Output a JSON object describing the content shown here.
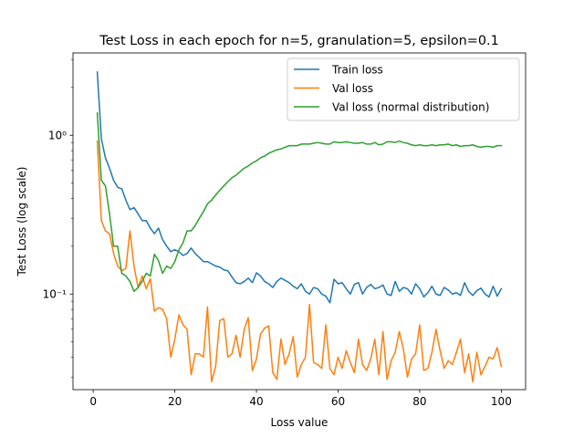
{
  "chart_data": {
    "type": "line",
    "title": "Test Loss in each epoch for n=5, granulation=5, epsilon=0.1",
    "xlabel": "Loss value",
    "ylabel": "Test Loss (log scale)",
    "xlim": [
      -4.95,
      105.95
    ],
    "ylim": [
      0.025,
      3.3
    ],
    "y_scale": "log",
    "x_ticks": [
      0,
      20,
      40,
      60,
      80,
      100
    ],
    "y_ticks": [
      {
        "value": 0.1,
        "label": "10⁻¹"
      },
      {
        "value": 1,
        "label": "10⁰"
      }
    ],
    "grid": false,
    "legend_position": "top-right",
    "x": [
      1,
      2,
      3,
      4,
      5,
      6,
      7,
      8,
      9,
      10,
      11,
      12,
      13,
      14,
      15,
      16,
      17,
      18,
      19,
      20,
      21,
      22,
      23,
      24,
      25,
      26,
      27,
      28,
      29,
      30,
      31,
      32,
      33,
      34,
      35,
      36,
      37,
      38,
      39,
      40,
      41,
      42,
      43,
      44,
      45,
      46,
      47,
      48,
      49,
      50,
      51,
      52,
      53,
      54,
      55,
      56,
      57,
      58,
      59,
      60,
      61,
      62,
      63,
      64,
      65,
      66,
      67,
      68,
      69,
      70,
      71,
      72,
      73,
      74,
      75,
      76,
      77,
      78,
      79,
      80,
      81,
      82,
      83,
      84,
      85,
      86,
      87,
      88,
      89,
      90,
      91,
      92,
      93,
      94,
      95,
      96,
      97,
      98,
      99,
      100
    ],
    "series": [
      {
        "name": "Train loss",
        "color": "#1f77b4",
        "values": [
          2.5,
          0.95,
          0.72,
          0.62,
          0.52,
          0.47,
          0.46,
          0.39,
          0.34,
          0.35,
          0.32,
          0.29,
          0.29,
          0.26,
          0.24,
          0.26,
          0.22,
          0.2,
          0.185,
          0.19,
          0.185,
          0.175,
          0.18,
          0.195,
          0.18,
          0.17,
          0.16,
          0.16,
          0.155,
          0.15,
          0.148,
          0.142,
          0.14,
          0.128,
          0.118,
          0.116,
          0.12,
          0.126,
          0.118,
          0.136,
          0.13,
          0.12,
          0.116,
          0.11,
          0.12,
          0.126,
          0.122,
          0.118,
          0.112,
          0.108,
          0.116,
          0.104,
          0.1,
          0.11,
          0.108,
          0.1,
          0.097,
          0.088,
          0.124,
          0.116,
          0.118,
          0.108,
          0.1,
          0.115,
          0.118,
          0.1,
          0.11,
          0.115,
          0.108,
          0.11,
          0.114,
          0.1,
          0.098,
          0.12,
          0.104,
          0.11,
          0.108,
          0.1,
          0.116,
          0.108,
          0.096,
          0.102,
          0.112,
          0.1,
          0.098,
          0.11,
          0.106,
          0.1,
          0.102,
          0.098,
          0.118,
          0.104,
          0.098,
          0.105,
          0.109,
          0.1,
          0.096,
          0.112,
          0.097,
          0.108
        ]
      },
      {
        "name": "Val loss",
        "color": "#ff7f0e",
        "values": [
          0.92,
          0.29,
          0.25,
          0.24,
          0.18,
          0.15,
          0.14,
          0.145,
          0.25,
          0.15,
          0.11,
          0.13,
          0.108,
          0.125,
          0.078,
          0.082,
          0.08,
          0.07,
          0.04,
          0.052,
          0.074,
          0.064,
          0.06,
          0.031,
          0.042,
          0.042,
          0.04,
          0.083,
          0.028,
          0.035,
          0.068,
          0.07,
          0.04,
          0.042,
          0.055,
          0.04,
          0.06,
          0.071,
          0.033,
          0.039,
          0.056,
          0.061,
          0.063,
          0.032,
          0.029,
          0.052,
          0.036,
          0.042,
          0.054,
          0.03,
          0.036,
          0.04,
          0.086,
          0.037,
          0.036,
          0.034,
          0.064,
          0.034,
          0.031,
          0.04,
          0.034,
          0.044,
          0.037,
          0.032,
          0.052,
          0.036,
          0.033,
          0.039,
          0.052,
          0.031,
          0.058,
          0.029,
          0.038,
          0.043,
          0.058,
          0.045,
          0.03,
          0.039,
          0.042,
          0.064,
          0.033,
          0.034,
          0.043,
          0.06,
          0.044,
          0.034,
          0.038,
          0.036,
          0.043,
          0.052,
          0.032,
          0.042,
          0.028,
          0.043,
          0.031,
          0.035,
          0.04,
          0.039,
          0.046,
          0.035
        ]
      },
      {
        "name": "Val loss (normal distribution)",
        "color": "#2ca02c",
        "values": [
          1.38,
          0.52,
          0.48,
          0.32,
          0.2,
          0.2,
          0.135,
          0.13,
          0.12,
          0.104,
          0.11,
          0.12,
          0.135,
          0.13,
          0.178,
          0.162,
          0.135,
          0.15,
          0.145,
          0.16,
          0.19,
          0.21,
          0.25,
          0.25,
          0.27,
          0.3,
          0.33,
          0.37,
          0.39,
          0.42,
          0.45,
          0.48,
          0.51,
          0.54,
          0.56,
          0.59,
          0.62,
          0.64,
          0.67,
          0.69,
          0.72,
          0.74,
          0.77,
          0.79,
          0.81,
          0.82,
          0.84,
          0.86,
          0.86,
          0.86,
          0.88,
          0.88,
          0.88,
          0.89,
          0.9,
          0.89,
          0.88,
          0.88,
          0.91,
          0.9,
          0.9,
          0.91,
          0.9,
          0.89,
          0.89,
          0.9,
          0.88,
          0.88,
          0.9,
          0.87,
          0.88,
          0.91,
          0.91,
          0.9,
          0.92,
          0.9,
          0.89,
          0.87,
          0.86,
          0.87,
          0.86,
          0.86,
          0.87,
          0.86,
          0.87,
          0.87,
          0.88,
          0.86,
          0.87,
          0.85,
          0.86,
          0.86,
          0.87,
          0.85,
          0.84,
          0.85,
          0.85,
          0.84,
          0.86,
          0.86
        ]
      }
    ]
  }
}
